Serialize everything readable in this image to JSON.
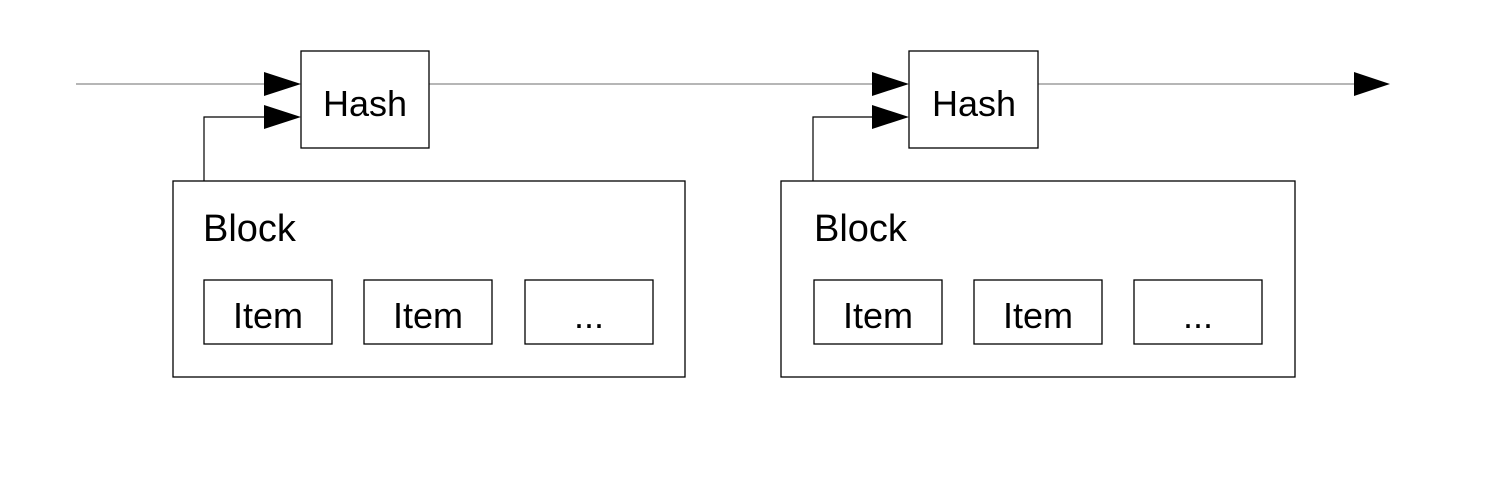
{
  "chain": [
    {
      "hash_label": "Hash",
      "block_label": "Block",
      "items": [
        "Item",
        "Item",
        "..."
      ]
    },
    {
      "hash_label": "Hash",
      "block_label": "Block",
      "items": [
        "Item",
        "Item",
        "..."
      ]
    }
  ]
}
